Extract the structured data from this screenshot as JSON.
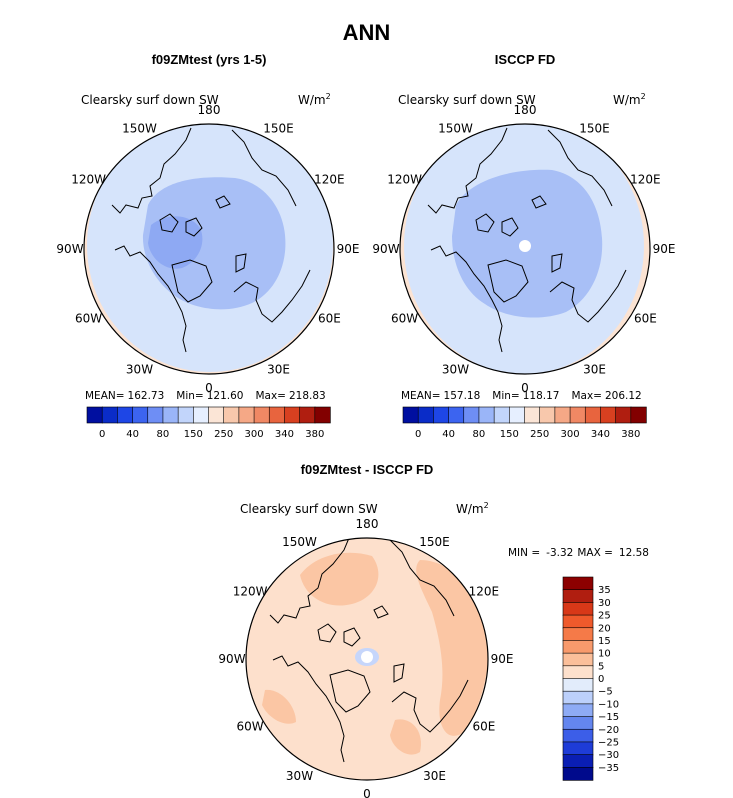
{
  "figure": {
    "main_title": "ANN"
  },
  "chart_data": [
    {
      "type": "heatmap",
      "title": "f09ZMtest (yrs 1-5)",
      "variable": "Clearsky surf down SW",
      "units": "W/m",
      "units_exp": "2",
      "projection": "north polar stereographic",
      "lon_labels": [
        "180",
        "150E",
        "120E",
        "90E",
        "60E",
        "30E",
        "0",
        "30W",
        "60W",
        "90W",
        "120W",
        "150W"
      ],
      "stats": {
        "mean_label": "MEAN=",
        "mean": "162.73",
        "min_label": "Min=",
        "min": "121.60",
        "max_label": "Max=",
        "max": "218.83"
      },
      "colorbar_levels": [
        0,
        40,
        80,
        150,
        250,
        300,
        340,
        380
      ],
      "colorbar_colors": [
        "#000fa0",
        "#0a2cc8",
        "#1e46e6",
        "#3c64f0",
        "#6e8ef5",
        "#9ab5f8",
        "#c2d5fb",
        "#e6efff",
        "#fbe5d6",
        "#f8c8ac",
        "#f5a886",
        "#f08864",
        "#e8643e",
        "#d84020",
        "#b01e10",
        "#820000"
      ],
      "regions": [
        {
          "level": "120-150",
          "color": "#8ea9f3"
        },
        {
          "level": "150-200",
          "color": "#d6e4fb"
        },
        {
          "level": "200-250",
          "color": "#fbe3d3"
        }
      ],
      "field_colors": {
        "low": "#a8bff6",
        "mid": "#d6e4fb",
        "high": "#fbe3d3"
      }
    },
    {
      "type": "heatmap",
      "title": "ISCCP FD",
      "variable": "Clearsky surf down SW",
      "units": "W/m",
      "units_exp": "2",
      "projection": "north polar stereographic",
      "lon_labels": [
        "180",
        "150E",
        "120E",
        "90E",
        "60E",
        "30E",
        "0",
        "30W",
        "60W",
        "90W",
        "120W",
        "150W"
      ],
      "stats": {
        "mean_label": "MEAN=",
        "mean": "157.18",
        "min_label": "Min=",
        "min": "118.17",
        "max_label": "Max=",
        "max": "206.12"
      },
      "colorbar_levels": [
        0,
        40,
        80,
        150,
        250,
        300,
        340,
        380
      ],
      "colorbar_colors": [
        "#000fa0",
        "#0a2cc8",
        "#1e46e6",
        "#3c64f0",
        "#6e8ef5",
        "#9ab5f8",
        "#c2d5fb",
        "#e6efff",
        "#fbe5d6",
        "#f8c8ac",
        "#f5a886",
        "#f08864",
        "#e8643e",
        "#d84020",
        "#b01e10",
        "#820000"
      ],
      "field_colors": {
        "low": "#a8bff6",
        "mid": "#d6e4fb",
        "high": "#fbe3d3"
      }
    },
    {
      "type": "heatmap",
      "title": "f09ZMtest - ISCCP FD",
      "variable": "Clearsky surf down SW",
      "units": "W/m",
      "units_exp": "2",
      "projection": "north polar stereographic",
      "lon_labels": [
        "180",
        "150E",
        "120E",
        "90E",
        "60E",
        "30E",
        "0",
        "30W",
        "60W",
        "90W",
        "120W",
        "150W"
      ],
      "stats": {
        "min_label": "MIN =",
        "min": "-3.32",
        "max_label": "MAX =",
        "max": "12.58"
      },
      "colorbar_levels": [
        "35",
        "30",
        "25",
        "20",
        "15",
        "10",
        "5",
        "0",
        "−5",
        "−10",
        "−15",
        "−20",
        "−25",
        "−30",
        "−35"
      ],
      "colorbar_colors": [
        "#8c0000",
        "#b01e10",
        "#d83818",
        "#ef5a2c",
        "#f57a48",
        "#f89a6c",
        "#fbbf9a",
        "#fde0cc",
        "#e2ecfb",
        "#bcd0fb",
        "#8eabf5",
        "#6486ef",
        "#3c5ee8",
        "#1e3cd8",
        "#0a1eb4",
        "#000a8c"
      ],
      "field_colors": {
        "base": "#fde0cc",
        "high": "#fbc6a4",
        "neg": "#c6d6fb"
      }
    }
  ]
}
